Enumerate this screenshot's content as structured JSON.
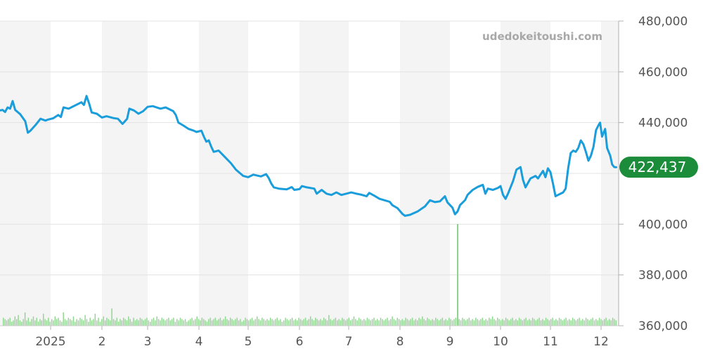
{
  "watermark": "udedokeitoushi.com",
  "colors": {
    "line": "#1a9ddb",
    "volume": "#8ed48e",
    "badge": "#1a8c3a",
    "band": "#f4f4f4",
    "grid": "#e3e3e3"
  },
  "chart_data": {
    "type": "line",
    "title": "",
    "xlabel": "",
    "ylabel": "",
    "ylim": [
      360000,
      480000
    ],
    "y_ticks": [
      "480,000",
      "460,000",
      "440,000",
      "400,000",
      "380,000",
      "360,000"
    ],
    "y_tick_values": [
      480000,
      460000,
      440000,
      400000,
      380000,
      360000
    ],
    "x_ticks": [
      "2025",
      "2",
      "3",
      "4",
      "5",
      "6",
      "7",
      "8",
      "9",
      "10",
      "11",
      "12"
    ],
    "grid": true,
    "legend": "none",
    "current_value_label": "422,437",
    "current_value": 422437,
    "months": [
      "2024-12",
      "2025-01",
      "2025-02",
      "2025-03",
      "2025-04",
      "2025-05",
      "2025-06",
      "2025-07",
      "2025-08",
      "2025-09",
      "2025-10",
      "2025-11",
      "2025-12"
    ],
    "series": [
      {
        "values": [
          [
            0.0,
            444800
          ],
          [
            0.05,
            445000
          ],
          [
            0.1,
            444200
          ],
          [
            0.15,
            446000
          ],
          [
            0.2,
            445500
          ],
          [
            0.25,
            448500
          ],
          [
            0.3,
            445000
          ],
          [
            0.4,
            443300
          ],
          [
            0.5,
            440500
          ],
          [
            0.55,
            436000
          ],
          [
            0.6,
            436800
          ],
          [
            0.7,
            439000
          ],
          [
            0.8,
            441500
          ],
          [
            0.9,
            440800
          ],
          [
            0.95,
            441200
          ],
          [
            1.05,
            441700
          ],
          [
            1.15,
            443000
          ],
          [
            1.2,
            442200
          ],
          [
            1.25,
            446000
          ],
          [
            1.35,
            445500
          ],
          [
            1.5,
            447000
          ],
          [
            1.6,
            448000
          ],
          [
            1.65,
            447000
          ],
          [
            1.7,
            450500
          ],
          [
            1.75,
            447500
          ],
          [
            1.8,
            444000
          ],
          [
            1.9,
            443500
          ],
          [
            2.0,
            442000
          ],
          [
            2.1,
            442500
          ],
          [
            2.25,
            441800
          ],
          [
            2.35,
            441500
          ],
          [
            2.4,
            440500
          ],
          [
            2.45,
            439500
          ],
          [
            2.55,
            441500
          ],
          [
            2.6,
            445500
          ],
          [
            2.7,
            444800
          ],
          [
            2.8,
            443500
          ],
          [
            2.9,
            444500
          ],
          [
            3.0,
            446200
          ],
          [
            3.1,
            446500
          ],
          [
            3.25,
            445500
          ],
          [
            3.35,
            446000
          ],
          [
            3.5,
            444500
          ],
          [
            3.55,
            443000
          ],
          [
            3.6,
            440000
          ],
          [
            3.7,
            438800
          ],
          [
            3.8,
            437500
          ],
          [
            3.9,
            436800
          ],
          [
            3.95,
            436300
          ],
          [
            4.05,
            436800
          ],
          [
            4.1,
            434500
          ],
          [
            4.15,
            432500
          ],
          [
            4.2,
            433000
          ],
          [
            4.25,
            430500
          ],
          [
            4.3,
            428500
          ],
          [
            4.4,
            429000
          ],
          [
            4.5,
            427000
          ],
          [
            4.55,
            426000
          ],
          [
            4.65,
            424000
          ],
          [
            4.75,
            421500
          ],
          [
            4.9,
            419000
          ],
          [
            5.0,
            418500
          ],
          [
            5.1,
            419500
          ],
          [
            5.25,
            418800
          ],
          [
            5.35,
            419700
          ],
          [
            5.4,
            418200
          ],
          [
            5.45,
            416000
          ],
          [
            5.5,
            414500
          ],
          [
            5.6,
            414000
          ],
          [
            5.75,
            413700
          ],
          [
            5.85,
            414600
          ],
          [
            5.9,
            413500
          ],
          [
            6.0,
            413800
          ],
          [
            6.05,
            415000
          ],
          [
            6.15,
            414500
          ],
          [
            6.3,
            414000
          ],
          [
            6.35,
            412000
          ],
          [
            6.45,
            413500
          ],
          [
            6.55,
            412000
          ],
          [
            6.65,
            411500
          ],
          [
            6.75,
            412500
          ],
          [
            6.85,
            411500
          ],
          [
            6.95,
            412000
          ],
          [
            7.05,
            412500
          ],
          [
            7.15,
            412000
          ],
          [
            7.25,
            411600
          ],
          [
            7.35,
            411000
          ],
          [
            7.4,
            412300
          ],
          [
            7.5,
            411200
          ],
          [
            7.6,
            410000
          ],
          [
            7.7,
            409400
          ],
          [
            7.8,
            408800
          ],
          [
            7.85,
            407500
          ],
          [
            7.95,
            406300
          ],
          [
            8.05,
            404000
          ],
          [
            8.1,
            403300
          ],
          [
            8.2,
            403700
          ],
          [
            8.35,
            405000
          ],
          [
            8.5,
            407000
          ],
          [
            8.6,
            409400
          ],
          [
            8.7,
            408700
          ],
          [
            8.8,
            409000
          ],
          [
            8.9,
            411000
          ],
          [
            8.95,
            408600
          ],
          [
            9.05,
            406500
          ],
          [
            9.1,
            403900
          ],
          [
            9.15,
            405000
          ],
          [
            9.2,
            407500
          ],
          [
            9.3,
            409500
          ],
          [
            9.35,
            411600
          ],
          [
            9.45,
            413500
          ],
          [
            9.55,
            414700
          ],
          [
            9.65,
            415500
          ],
          [
            9.7,
            412000
          ],
          [
            9.75,
            414000
          ],
          [
            9.85,
            413500
          ],
          [
            9.95,
            414300
          ],
          [
            10.0,
            415000
          ],
          [
            10.05,
            411500
          ],
          [
            10.1,
            410000
          ],
          [
            10.15,
            412000
          ],
          [
            10.25,
            417000
          ],
          [
            10.32,
            421500
          ],
          [
            10.4,
            422500
          ],
          [
            10.45,
            417500
          ],
          [
            10.5,
            414500
          ],
          [
            10.6,
            418000
          ],
          [
            10.7,
            419000
          ],
          [
            10.75,
            418000
          ],
          [
            10.8,
            419500
          ],
          [
            10.85,
            421000
          ],
          [
            10.9,
            418500
          ],
          [
            10.95,
            422000
          ],
          [
            11.0,
            420500
          ],
          [
            11.05,
            416000
          ],
          [
            11.1,
            411000
          ],
          [
            11.15,
            411500
          ],
          [
            11.2,
            412000
          ],
          [
            11.25,
            412500
          ],
          [
            11.3,
            414000
          ],
          [
            11.35,
            422000
          ],
          [
            11.4,
            428000
          ],
          [
            11.45,
            429000
          ],
          [
            11.5,
            428500
          ],
          [
            11.55,
            430000
          ],
          [
            11.6,
            433000
          ],
          [
            11.65,
            431500
          ],
          [
            11.7,
            428500
          ],
          [
            11.75,
            425000
          ],
          [
            11.8,
            427000
          ],
          [
            11.85,
            430500
          ],
          [
            11.9,
            437000
          ],
          [
            11.95,
            439000
          ],
          [
            11.98,
            440000
          ],
          [
            12.02,
            434500
          ],
          [
            12.08,
            437500
          ],
          [
            12.12,
            430000
          ],
          [
            12.18,
            427000
          ],
          [
            12.22,
            423500
          ],
          [
            12.26,
            422500
          ],
          [
            12.3,
            422437
          ]
        ]
      },
      {
        "name": "volume",
        "values": [
          0.06,
          0.05,
          0.04,
          0.05,
          0.06,
          0.03,
          0.04,
          0.07,
          0.05,
          0.08,
          0.04,
          0.03,
          0.05,
          0.1,
          0.04,
          0.06,
          0.03,
          0.05,
          0.07,
          0.04,
          0.06,
          0.03,
          0.05,
          0.04,
          0.09,
          0.05,
          0.04,
          0.06,
          0.03,
          0.05,
          0.04,
          0.07,
          0.05,
          0.06,
          0.04,
          0.03,
          0.1,
          0.05,
          0.04,
          0.06,
          0.05,
          0.04,
          0.07,
          0.03,
          0.05,
          0.04,
          0.06,
          0.05,
          0.04,
          0.08,
          0.05,
          0.03,
          0.06,
          0.04,
          0.05,
          0.09,
          0.04,
          0.06,
          0.03,
          0.05,
          0.07,
          0.04,
          0.06,
          0.05,
          0.04,
          0.13,
          0.05,
          0.04,
          0.06,
          0.03,
          0.05,
          0.04,
          0.06,
          0.05,
          0.04,
          0.07,
          0.05,
          0.03,
          0.06,
          0.04,
          0.05,
          0.04,
          0.06,
          0.05,
          0.04,
          0.05,
          0.06,
          0.04,
          0.03,
          0.05,
          0.06,
          0.04,
          0.07,
          0.05,
          0.04,
          0.06,
          0.05,
          0.04,
          0.05,
          0.06,
          0.04,
          0.05,
          0.06,
          0.03,
          0.05,
          0.04,
          0.06,
          0.05,
          0.04,
          0.05,
          0.03,
          0.04,
          0.05,
          0.06,
          0.04,
          0.05,
          0.07,
          0.05,
          0.04,
          0.06,
          0.05,
          0.04,
          0.03,
          0.05,
          0.06,
          0.04,
          0.05,
          0.06,
          0.04,
          0.05,
          0.06,
          0.04,
          0.05,
          0.07,
          0.05,
          0.04,
          0.06,
          0.05,
          0.04,
          0.05,
          0.06,
          0.04,
          0.05,
          0.03,
          0.04,
          0.06,
          0.05,
          0.04,
          0.05,
          0.06,
          0.04,
          0.05,
          0.07,
          0.05,
          0.04,
          0.06,
          0.05,
          0.04,
          0.05,
          0.04,
          0.06,
          0.05,
          0.04,
          0.05,
          0.06,
          0.04,
          0.05,
          0.03,
          0.04,
          0.06,
          0.05,
          0.04,
          0.05,
          0.06,
          0.04,
          0.05,
          0.04,
          0.06,
          0.05,
          0.04,
          0.05,
          0.06,
          0.04,
          0.05,
          0.07,
          0.05,
          0.04,
          0.06,
          0.05,
          0.04,
          0.05,
          0.04,
          0.06,
          0.05,
          0.04,
          0.08,
          0.05,
          0.04,
          0.05,
          0.06,
          0.04,
          0.05,
          0.04,
          0.06,
          0.05,
          0.04,
          0.05,
          0.06,
          0.04,
          0.05,
          0.07,
          0.05,
          0.04,
          0.06,
          0.05,
          0.04,
          0.05,
          0.04,
          0.06,
          0.05,
          0.04,
          0.05,
          0.06,
          0.04,
          0.05,
          0.04,
          0.06,
          0.05,
          0.04,
          0.05,
          0.06,
          0.04,
          0.05,
          0.07,
          0.05,
          0.04,
          0.06,
          0.05,
          0.04,
          0.05,
          0.04,
          0.06,
          0.05,
          0.04,
          0.05,
          0.06,
          0.04,
          0.05,
          0.04,
          0.06,
          0.05,
          0.07,
          0.05,
          0.04,
          0.06,
          0.05,
          0.04,
          0.05,
          0.04,
          0.06,
          0.05,
          0.04,
          0.05,
          0.06,
          0.04,
          0.05,
          0.04,
          0.06,
          0.05,
          0.04,
          0.05,
          0.06,
          0.04,
          0.05,
          0.04,
          0.06,
          0.05,
          0.04,
          0.05,
          0.06,
          0.04,
          0.05,
          0.04,
          0.06,
          0.05,
          0.04,
          0.05,
          0.06,
          0.04,
          0.05,
          0.04,
          0.06,
          0.05,
          0.07,
          0.05,
          0.04,
          0.06,
          0.05,
          0.04,
          0.05,
          0.04,
          0.06,
          0.05,
          0.04,
          0.05,
          0.06,
          0.04,
          0.05,
          0.04,
          0.06,
          0.05,
          0.04,
          0.05,
          0.06,
          0.04,
          0.05,
          0.04,
          0.06,
          0.05,
          0.04,
          0.05,
          0.06,
          0.04,
          0.05,
          0.04,
          0.06,
          0.05,
          0.04,
          0.05,
          0.06,
          0.04,
          0.05,
          0.04,
          0.06,
          0.05,
          0.04,
          0.05,
          0.06,
          0.04,
          0.05,
          0.04,
          0.06,
          0.05,
          0.04,
          0.05,
          0.06,
          0.04,
          0.05,
          0.04,
          0.06,
          0.05,
          0.04,
          0.05,
          0.06,
          0.04,
          0.05,
          0.04,
          0.06,
          0.05,
          0.04,
          0.05,
          0.06,
          0.04,
          0.05,
          0.04,
          0.06,
          0.05,
          0.04
        ]
      }
    ]
  }
}
